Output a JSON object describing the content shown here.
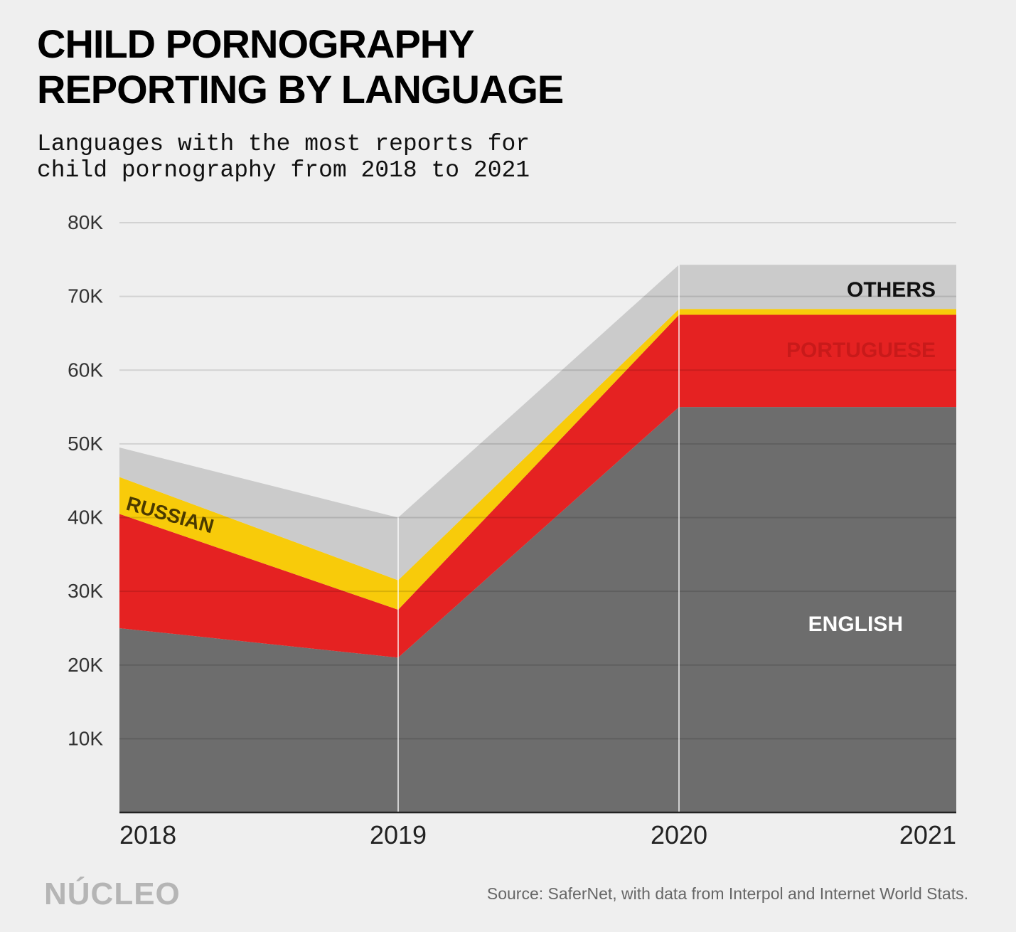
{
  "header": {
    "title_line1": "CHILD PORNOGRAPHY",
    "title_line2": "REPORTING BY LANGUAGE",
    "subtitle_line1": "Languages with the most reports for",
    "subtitle_line2": "child pornography from 2018 to 2021"
  },
  "footer": {
    "logo": "NÚCLEO",
    "source": "Source: SaferNet, with data from Interpol and Internet World Stats."
  },
  "chart_data": {
    "type": "area",
    "stacked": true,
    "x": [
      "2018",
      "2019",
      "2020",
      "2021"
    ],
    "ylim": [
      0,
      80000
    ],
    "y_ticks": [
      10000,
      20000,
      30000,
      40000,
      50000,
      60000,
      70000,
      80000
    ],
    "y_tick_labels": [
      "10K",
      "20K",
      "30K",
      "40K",
      "50K",
      "60K",
      "70K",
      "80K"
    ],
    "grid": true,
    "series": [
      {
        "name": "ENGLISH",
        "values": [
          25000,
          21000,
          55000,
          55000
        ],
        "color": "#6d6d6d",
        "label_color": "#ffffff"
      },
      {
        "name": "PORTUGUESE",
        "values": [
          15500,
          6500,
          12500,
          12500
        ],
        "color": "#e52222",
        "label_color": "#c81a1a"
      },
      {
        "name": "RUSSIAN",
        "values": [
          5000,
          4000,
          800,
          800
        ],
        "color": "#f8cb0a",
        "label_color": "#4a3a00"
      },
      {
        "name": "OTHERS",
        "values": [
          4000,
          8500,
          6000,
          6000
        ],
        "color": "#cbcbcb",
        "label_color": "#111111"
      }
    ]
  }
}
